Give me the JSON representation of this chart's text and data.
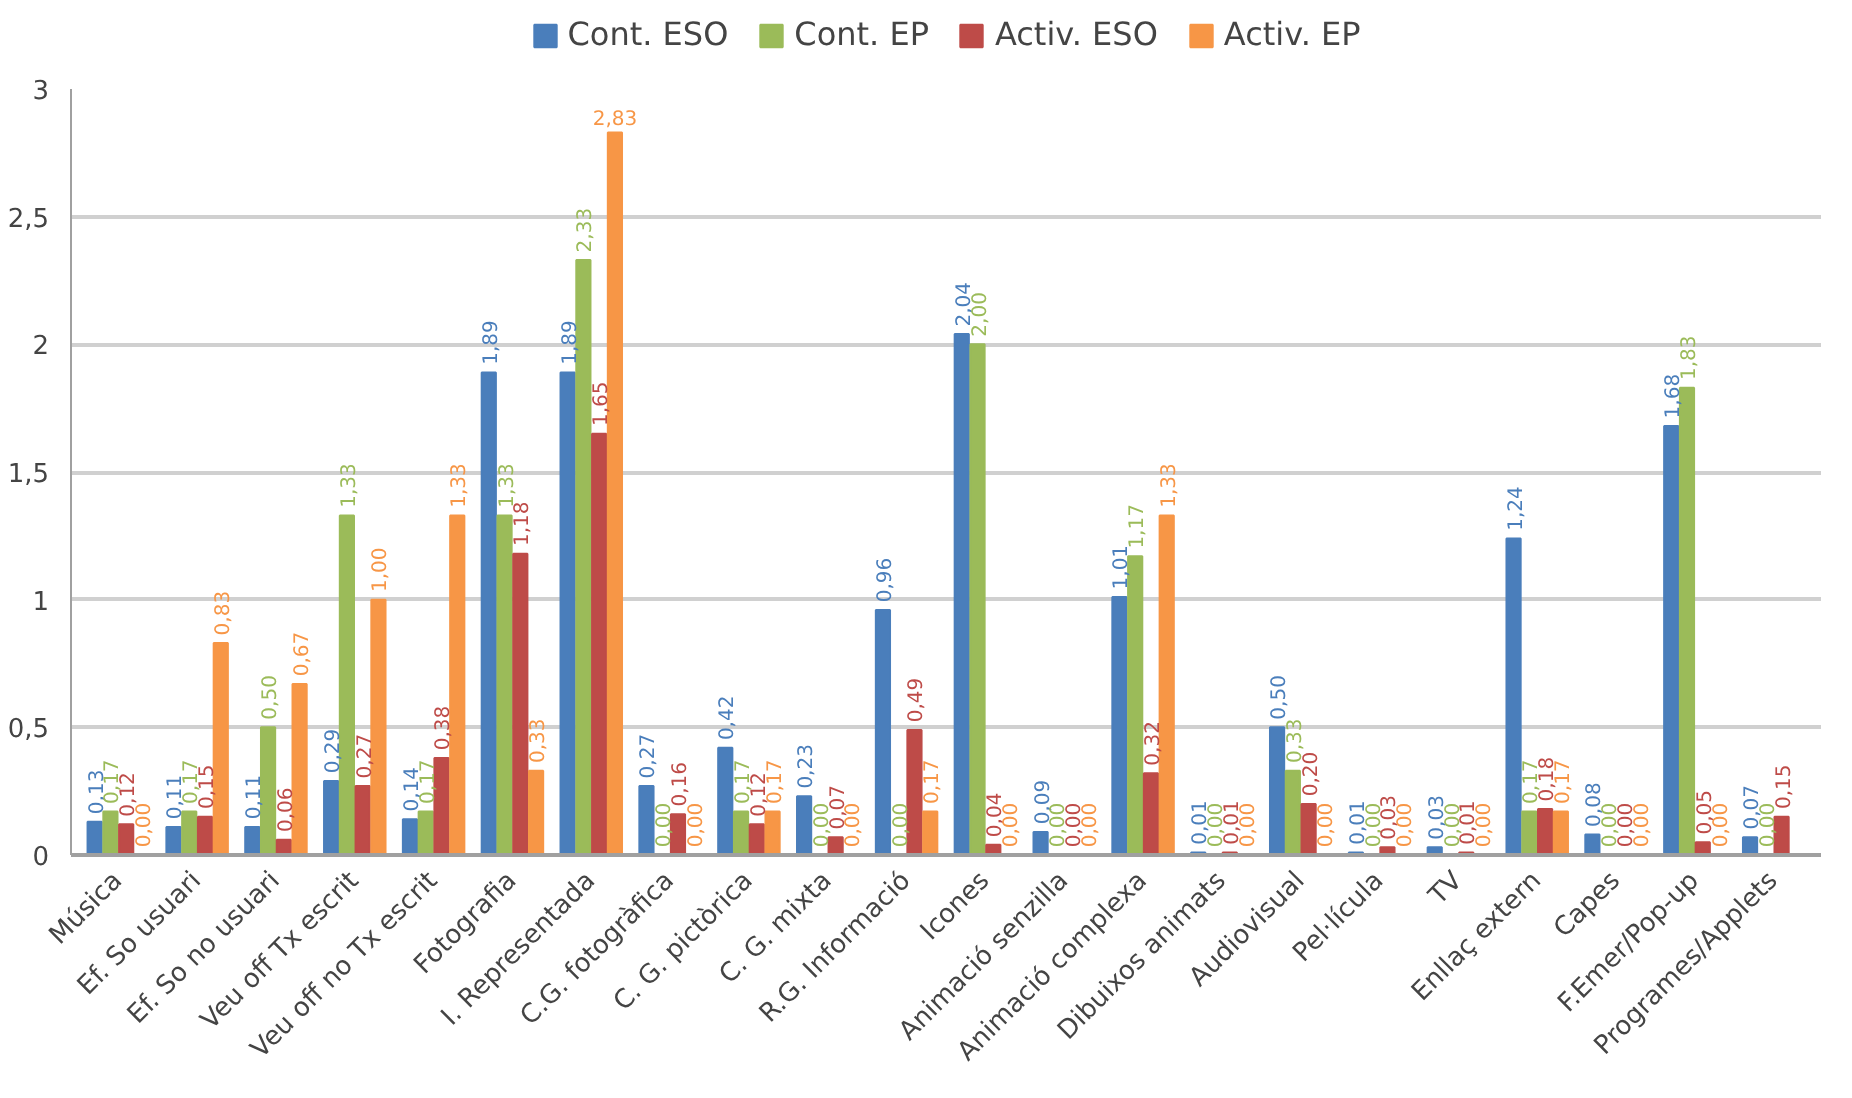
{
  "chart_data": {
    "type": "bar",
    "categories": [
      "Música",
      "Ef. So usuari",
      "Ef. So no usuari",
      "Veu off Tx escrit",
      "Veu off no Tx escrit",
      "Fotografia",
      "I. Representada",
      "C.G. fotogràfica",
      "C. G. pictòrica",
      "C. G. mixta",
      "R.G. Informació",
      "Icones",
      "Animació senzilla",
      "Animació complexa",
      "Dibuixos animats",
      "Audiovisual",
      "Pel·lícula",
      "TV",
      "Enllaç extern",
      "Capes",
      "F.Emer/Pop-up",
      "Programes/Applets"
    ],
    "series": [
      {
        "name": "Cont. ESO",
        "color": "#4a7ebb",
        "values": [
          0.13,
          0.11,
          0.11,
          0.29,
          0.14,
          1.89,
          1.89,
          0.27,
          0.42,
          0.23,
          0.96,
          2.04,
          0.09,
          1.01,
          0.01,
          0.5,
          0.01,
          0.03,
          1.24,
          0.08,
          1.68,
          0.07
        ],
        "value_labels": [
          "0,13",
          "0,11",
          "0,11",
          "0,29",
          "0,14",
          "1,89",
          "1,89",
          "0,27",
          "0,42",
          "0,23",
          "0,96",
          "2,04",
          "0,09",
          "1,01",
          "0,01",
          "0,50",
          "0,01",
          "0,03",
          "1,24",
          "0,08",
          "1,68",
          "0,07"
        ]
      },
      {
        "name": "Cont. EP",
        "color": "#9bbb59",
        "values": [
          0.17,
          0.17,
          0.5,
          1.33,
          0.17,
          1.33,
          2.33,
          0.0,
          0.17,
          0.0,
          0.0,
          2.0,
          0.0,
          1.17,
          0.0,
          0.33,
          0.0,
          0.0,
          0.17,
          0.0,
          1.83,
          0.0
        ],
        "value_labels": [
          "0,17",
          "0,17",
          "0,50",
          "1,33",
          "0,17",
          "1,33",
          "2,33",
          "0,00",
          "0,17",
          "0,00",
          "0,00",
          "2,00",
          "0,00",
          "1,17",
          "0,00",
          "0,33",
          "0,00",
          "0,00",
          "0,17",
          "0,00",
          "1,83",
          "0,00"
        ]
      },
      {
        "name": "Activ. ESO",
        "color": "#be4b48",
        "values": [
          0.12,
          0.15,
          0.06,
          0.27,
          0.38,
          1.18,
          1.65,
          0.16,
          0.12,
          0.07,
          0.49,
          0.04,
          0.0,
          0.32,
          0.01,
          0.2,
          0.03,
          0.01,
          0.18,
          0.0,
          0.05,
          0.15
        ],
        "value_labels": [
          "0,12",
          "0,15",
          "0,06",
          "0,27",
          "0,38",
          "1,18",
          "1,65",
          "0,16",
          "0,12",
          "0,07",
          "0,49",
          "0,04",
          "0,00",
          "0,32",
          "0,01",
          "0,20",
          "0,03",
          "0,01",
          "0,18",
          "0,00",
          "0,05",
          "0,15"
        ]
      },
      {
        "name": "Activ. EP",
        "color": "#f79646",
        "values": [
          0.0,
          0.83,
          0.67,
          1.0,
          1.33,
          0.33,
          2.83,
          0.0,
          0.17,
          0.0,
          0.17,
          0.0,
          0.0,
          1.33,
          0.0,
          0.0,
          0.0,
          0.0,
          0.17,
          0.0,
          0.0,
          0.0
        ],
        "value_labels": [
          "0,00",
          "0,83",
          "0,67",
          "1,00",
          "1,33",
          "0,33",
          "2,83",
          "0,00",
          "0,17",
          "0,00",
          "0,17",
          "0,00",
          "0,00",
          "1,33",
          "0,00",
          "0,00",
          "0,00",
          "0,00",
          "0,17",
          "0,00",
          "0,00",
          null
        ]
      }
    ],
    "ylim": [
      0,
      3
    ],
    "yticks": [
      0,
      {
        "value": 0.5,
        "label": "0,5"
      },
      1,
      {
        "value": 1.5,
        "label": "1,5"
      },
      2,
      {
        "value": 2.5,
        "label": "2,5"
      },
      3
    ],
    "grid": "y",
    "legend": "top"
  }
}
